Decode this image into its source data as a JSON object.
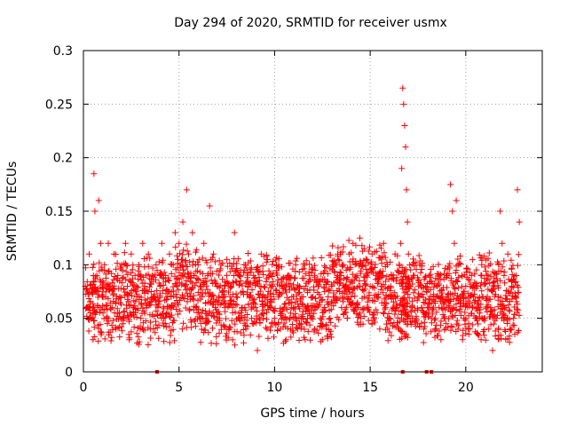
{
  "chart_data": {
    "type": "scatter",
    "title": "Day 294 of 2020, SRMTID for receiver usmx",
    "xlabel": "GPS time / hours",
    "ylabel": "SRMTID / TECUs",
    "xlim": [
      0,
      24
    ],
    "ylim": [
      0,
      0.3
    ],
    "xticks": [
      0,
      5,
      10,
      15,
      20
    ],
    "yticks": [
      0,
      0.05,
      0.1,
      0.15,
      0.2,
      0.25,
      0.3
    ],
    "xtick_labels": [
      "0",
      "5",
      "10",
      "15",
      "20"
    ],
    "ytick_labels": [
      "0",
      "0.05",
      "0.1",
      "0.15",
      "0.2",
      "0.25",
      "0.3"
    ],
    "grid": true,
    "marker": "+",
    "series": [
      {
        "name": "SRMTID",
        "color": "#ff0000",
        "points": [
          [
            0.1,
            0.08
          ],
          [
            0.2,
            0.06
          ],
          [
            0.3,
            0.11
          ],
          [
            0.4,
            0.05
          ],
          [
            0.5,
            0.03
          ],
          [
            0.55,
            0.185
          ],
          [
            0.6,
            0.15
          ],
          [
            0.7,
            0.09
          ],
          [
            0.8,
            0.16
          ],
          [
            0.9,
            0.12
          ],
          [
            1.0,
            0.07
          ],
          [
            1.1,
            0.1
          ],
          [
            1.2,
            0.05
          ],
          [
            1.3,
            0.12
          ],
          [
            1.4,
            0.08
          ],
          [
            1.5,
            0.06
          ],
          [
            1.6,
            0.11
          ],
          [
            1.7,
            0.04
          ],
          [
            1.8,
            0.09
          ],
          [
            1.9,
            0.07
          ],
          [
            2.0,
            0.1
          ],
          [
            2.1,
            0.05
          ],
          [
            2.2,
            0.12
          ],
          [
            2.3,
            0.08
          ],
          [
            2.4,
            0.03
          ],
          [
            2.5,
            0.11
          ],
          [
            2.6,
            0.06
          ],
          [
            2.7,
            0.09
          ],
          [
            2.8,
            0.07
          ],
          [
            2.9,
            0.1
          ],
          [
            3.0,
            0.05
          ],
          [
            3.1,
            0.12
          ],
          [
            3.2,
            0.08
          ],
          [
            3.3,
            0.06
          ],
          [
            3.4,
            0.11
          ],
          [
            3.5,
            0.04
          ],
          [
            3.6,
            0.09
          ],
          [
            3.7,
            0.07
          ],
          [
            3.8,
            0.1
          ],
          [
            3.9,
            0.06
          ],
          [
            4.0,
            0.08
          ],
          [
            4.1,
            0.12
          ],
          [
            4.2,
            0.05
          ],
          [
            4.3,
            0.09
          ],
          [
            4.4,
            0.07
          ],
          [
            4.5,
            0.11
          ],
          [
            4.6,
            0.06
          ],
          [
            4.7,
            0.1
          ],
          [
            4.8,
            0.13
          ],
          [
            4.9,
            0.08
          ],
          [
            5.0,
            0.12
          ],
          [
            5.1,
            0.09
          ],
          [
            5.2,
            0.14
          ],
          [
            5.3,
            0.08
          ],
          [
            5.4,
            0.17
          ],
          [
            5.5,
            0.11
          ],
          [
            5.6,
            0.07
          ],
          [
            5.7,
            0.13
          ],
          [
            5.8,
            0.09
          ],
          [
            5.9,
            0.06
          ],
          [
            6.0,
            0.1
          ],
          [
            6.1,
            0.08
          ],
          [
            6.2,
            0.07
          ],
          [
            6.3,
            0.12
          ],
          [
            6.4,
            0.05
          ],
          [
            6.5,
            0.09
          ],
          [
            6.6,
            0.155
          ],
          [
            6.7,
            0.07
          ],
          [
            6.8,
            0.11
          ],
          [
            6.9,
            0.06
          ],
          [
            7.0,
            0.08
          ],
          [
            7.1,
            0.05
          ],
          [
            7.2,
            0.1
          ],
          [
            7.3,
            0.07
          ],
          [
            7.4,
            0.06
          ],
          [
            7.5,
            0.09
          ],
          [
            7.6,
            0.04
          ],
          [
            7.7,
            0.08
          ],
          [
            7.8,
            0.06
          ],
          [
            7.9,
            0.13
          ],
          [
            8.0,
            0.07
          ],
          [
            8.1,
            0.05
          ],
          [
            8.2,
            0.09
          ],
          [
            8.3,
            0.06
          ],
          [
            8.4,
            0.1
          ],
          [
            8.5,
            0.04
          ],
          [
            8.6,
            0.08
          ],
          [
            8.7,
            0.07
          ],
          [
            8.8,
            0.05
          ],
          [
            8.9,
            0.09
          ],
          [
            9.0,
            0.06
          ],
          [
            9.1,
            0.02
          ],
          [
            9.2,
            0.08
          ],
          [
            9.3,
            0.11
          ],
          [
            9.4,
            0.05
          ],
          [
            9.5,
            0.07
          ],
          [
            9.6,
            0.04
          ],
          [
            9.7,
            0.09
          ],
          [
            9.8,
            0.06
          ],
          [
            9.9,
            0.08
          ],
          [
            10.0,
            0.05
          ],
          [
            10.1,
            0.1
          ],
          [
            10.2,
            0.07
          ],
          [
            10.3,
            0.04
          ],
          [
            10.4,
            0.08
          ],
          [
            10.5,
            0.06
          ],
          [
            10.6,
            0.03
          ],
          [
            10.7,
            0.09
          ],
          [
            10.8,
            0.05
          ],
          [
            10.9,
            0.07
          ],
          [
            11.0,
            0.06
          ],
          [
            11.1,
            0.1
          ],
          [
            11.2,
            0.04
          ],
          [
            11.3,
            0.08
          ],
          [
            11.4,
            0.05
          ],
          [
            11.5,
            0.07
          ],
          [
            11.6,
            0.03
          ],
          [
            11.7,
            0.06
          ],
          [
            11.8,
            0.09
          ],
          [
            11.9,
            0.05
          ],
          [
            12.0,
            0.07
          ],
          [
            12.1,
            0.04
          ],
          [
            12.2,
            0.06
          ],
          [
            12.3,
            0.08
          ],
          [
            12.4,
            0.05
          ],
          [
            12.5,
            0.03
          ],
          [
            12.6,
            0.06
          ],
          [
            12.7,
            0.04
          ],
          [
            12.8,
            0.07
          ],
          [
            12.9,
            0.05
          ],
          [
            13.0,
            0.08
          ],
          [
            13.1,
            0.1
          ],
          [
            13.2,
            0.07
          ],
          [
            13.3,
            0.11
          ],
          [
            13.4,
            0.09
          ],
          [
            13.5,
            0.06
          ],
          [
            13.6,
            0.1
          ],
          [
            13.7,
            0.08
          ],
          [
            13.8,
            0.05
          ],
          [
            13.9,
            0.11
          ],
          [
            14.0,
            0.07
          ],
          [
            14.1,
            0.12
          ],
          [
            14.2,
            0.06
          ],
          [
            14.3,
            0.09
          ],
          [
            14.4,
            0.08
          ],
          [
            14.5,
            0.05
          ],
          [
            14.6,
            0.1
          ],
          [
            14.7,
            0.07
          ],
          [
            14.8,
            0.09
          ],
          [
            14.9,
            0.06
          ],
          [
            15.0,
            0.08
          ],
          [
            15.1,
            0.11
          ],
          [
            15.2,
            0.05
          ],
          [
            15.3,
            0.09
          ],
          [
            15.4,
            0.07
          ],
          [
            15.5,
            0.04
          ],
          [
            15.6,
            0.08
          ],
          [
            15.7,
            0.12
          ],
          [
            15.8,
            0.06
          ],
          [
            15.9,
            0.1
          ],
          [
            16.0,
            0.05
          ],
          [
            16.1,
            0.09
          ],
          [
            16.2,
            0.07
          ],
          [
            16.3,
            0.11
          ],
          [
            16.4,
            0.06
          ],
          [
            16.5,
            0.04
          ],
          [
            16.6,
            0.12
          ],
          [
            16.65,
            0.19
          ],
          [
            16.7,
            0.265
          ],
          [
            16.75,
            0.25
          ],
          [
            16.8,
            0.23
          ],
          [
            16.85,
            0.21
          ],
          [
            16.9,
            0.17
          ],
          [
            16.95,
            0.14
          ],
          [
            17.0,
            0.11
          ],
          [
            17.1,
            0.08
          ],
          [
            17.2,
            0.06
          ],
          [
            17.3,
            0.09
          ],
          [
            17.4,
            0.05
          ],
          [
            17.5,
            0.07
          ],
          [
            17.6,
            0.1
          ],
          [
            17.7,
            0.06
          ],
          [
            17.8,
            0.04
          ],
          [
            17.9,
            0.08
          ],
          [
            18.0,
            0.06
          ],
          [
            18.1,
            0.09
          ],
          [
            18.2,
            0.05
          ],
          [
            18.3,
            0.07
          ],
          [
            18.4,
            0.04
          ],
          [
            18.5,
            0.08
          ],
          [
            18.6,
            0.06
          ],
          [
            18.7,
            0.03
          ],
          [
            18.8,
            0.07
          ],
          [
            18.9,
            0.05
          ],
          [
            19.0,
            0.09
          ],
          [
            19.1,
            0.06
          ],
          [
            19.2,
            0.175
          ],
          [
            19.3,
            0.15
          ],
          [
            19.4,
            0.12
          ],
          [
            19.5,
            0.16
          ],
          [
            19.6,
            0.1
          ],
          [
            19.7,
            0.07
          ],
          [
            19.8,
            0.09
          ],
          [
            19.9,
            0.05
          ],
          [
            20.0,
            0.08
          ],
          [
            20.1,
            0.06
          ],
          [
            20.2,
            0.04
          ],
          [
            20.3,
            0.09
          ],
          [
            20.4,
            0.07
          ],
          [
            20.5,
            0.05
          ],
          [
            20.6,
            0.08
          ],
          [
            20.7,
            0.06
          ],
          [
            20.8,
            0.03
          ],
          [
            20.9,
            0.07
          ],
          [
            21.0,
            0.05
          ],
          [
            21.1,
            0.09
          ],
          [
            21.2,
            0.04
          ],
          [
            21.3,
            0.06
          ],
          [
            21.4,
            0.02
          ],
          [
            21.5,
            0.08
          ],
          [
            21.6,
            0.05
          ],
          [
            21.7,
            0.07
          ],
          [
            21.8,
            0.15
          ],
          [
            21.9,
            0.12
          ],
          [
            22.0,
            0.09
          ],
          [
            22.1,
            0.06
          ],
          [
            22.2,
            0.11
          ],
          [
            22.3,
            0.04
          ],
          [
            22.4,
            0.08
          ],
          [
            22.5,
            0.05
          ],
          [
            22.6,
            0.07
          ],
          [
            22.7,
            0.17
          ],
          [
            22.8,
            0.14
          ]
        ],
        "zero_points": [
          3.85,
          16.7,
          17.95,
          18.2
        ]
      }
    ]
  }
}
